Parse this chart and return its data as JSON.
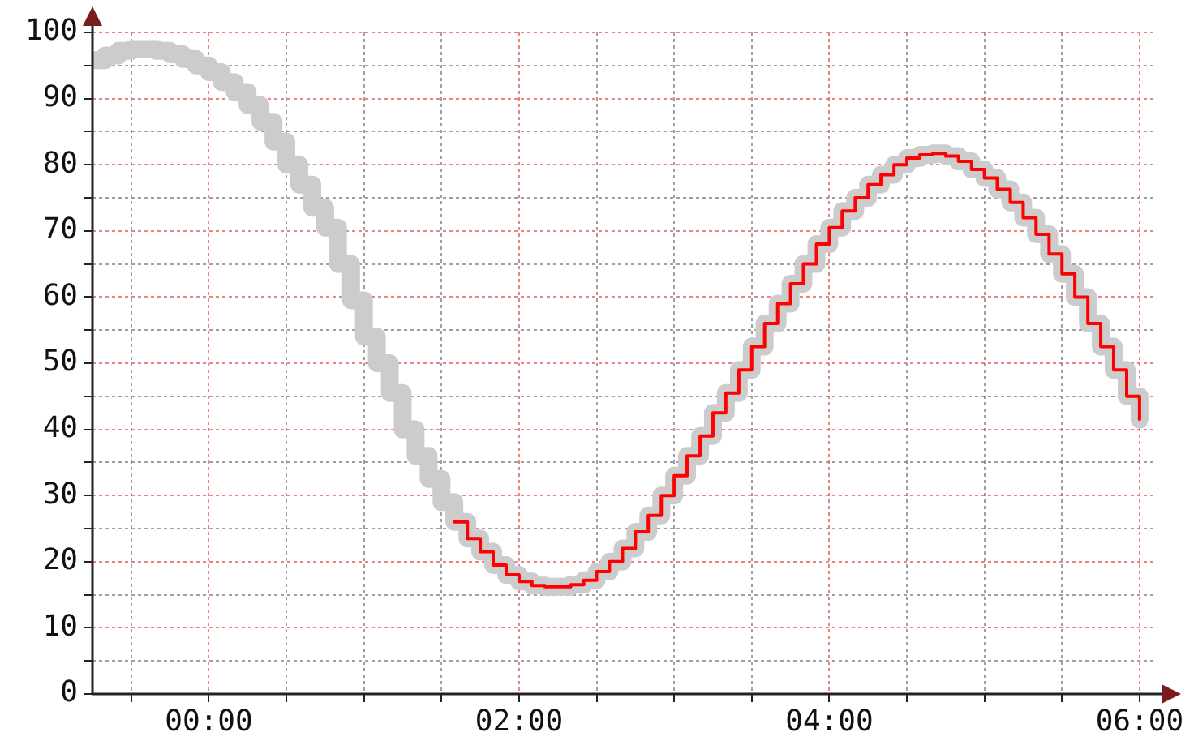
{
  "chart_data": {
    "type": "step",
    "xlim": [
      -0.75,
      6.1
    ],
    "ylim": [
      0,
      100
    ],
    "xticks": [
      {
        "value": -0.5,
        "label": null
      },
      {
        "value": 0,
        "label": "00:00"
      },
      {
        "value": 0.5,
        "label": null
      },
      {
        "value": 1,
        "label": null
      },
      {
        "value": 1.5,
        "label": null
      },
      {
        "value": 2,
        "label": "02:00"
      },
      {
        "value": 2.5,
        "label": null
      },
      {
        "value": 3,
        "label": null
      },
      {
        "value": 3.5,
        "label": null
      },
      {
        "value": 4,
        "label": "04:00"
      },
      {
        "value": 4.5,
        "label": null
      },
      {
        "value": 5,
        "label": null
      },
      {
        "value": 5.5,
        "label": null
      },
      {
        "value": 6,
        "label": "06:00"
      }
    ],
    "yticks": [
      0,
      {
        "value": 5,
        "label": null
      },
      10,
      {
        "value": 15,
        "label": null
      },
      20,
      {
        "value": 25,
        "label": null
      },
      30,
      {
        "value": 35,
        "label": null
      },
      40,
      {
        "value": 45,
        "label": null
      },
      50,
      {
        "value": 55,
        "label": null
      },
      60,
      {
        "value": 65,
        "label": null
      },
      70,
      {
        "value": 75,
        "label": null
      },
      80,
      {
        "value": 85,
        "label": null
      },
      90,
      {
        "value": 95,
        "label": null
      },
      100
    ],
    "grid": true,
    "legend": false,
    "marker": "none",
    "series": [
      {
        "color": "#cccccc",
        "x": [
          -0.75,
          -0.667,
          -0.583,
          -0.5,
          -0.417,
          -0.333,
          -0.25,
          -0.167,
          -0.083,
          0,
          0.083,
          0.167,
          0.25,
          0.333,
          0.417,
          0.5,
          0.583,
          0.667,
          0.75,
          0.833,
          0.917,
          1,
          1.083,
          1.167,
          1.25,
          1.333,
          1.417,
          1.5,
          1.583,
          1.667,
          1.75,
          1.833,
          1.917,
          2,
          2.083,
          2.167,
          2.25,
          2.333,
          2.417,
          2.5,
          2.583,
          2.667,
          2.75,
          2.833,
          2.917,
          3,
          3.083,
          3.167,
          3.25,
          3.333,
          3.417,
          3.5,
          3.583,
          3.667,
          3.75,
          3.833,
          3.917,
          4,
          4.083,
          4.167,
          4.25,
          4.333,
          4.417,
          4.5,
          4.583,
          4.667,
          4.75,
          4.833,
          4.917,
          5,
          5.083,
          5.167,
          5.25,
          5.333,
          5.417,
          5.5,
          5.583,
          5.667,
          5.75,
          5.833,
          5.917,
          6
        ],
        "values": [
          95.8,
          96.5,
          97.2,
          97.5,
          97.5,
          97.2,
          96.7,
          96,
          95,
          94,
          92.5,
          91,
          89,
          86.5,
          83.5,
          80,
          77,
          73.5,
          70.5,
          65,
          59.5,
          54,
          50,
          45.5,
          40,
          36,
          32.5,
          29,
          26,
          23.5,
          21.5,
          19.5,
          18,
          17,
          16.4,
          16.2,
          16.2,
          16.5,
          17.2,
          18.5,
          20,
          22,
          24.5,
          27,
          30,
          33,
          36,
          39,
          42.5,
          45.5,
          49,
          52.5,
          56,
          59,
          62,
          65,
          68,
          70.5,
          73,
          75,
          77,
          78.5,
          80,
          81,
          81.5,
          81.7,
          81.3,
          80.5,
          79.3,
          78,
          76.3,
          74.3,
          72,
          69.5,
          66.5,
          63.5,
          60,
          56,
          52.5,
          49,
          45,
          41.5
        ]
      },
      {
        "color": "#ff0000",
        "x": [
          1.583,
          1.667,
          1.75,
          1.833,
          1.917,
          2,
          2.083,
          2.167,
          2.25,
          2.333,
          2.417,
          2.5,
          2.583,
          2.667,
          2.75,
          2.833,
          2.917,
          3,
          3.083,
          3.167,
          3.25,
          3.333,
          3.417,
          3.5,
          3.583,
          3.667,
          3.75,
          3.833,
          3.917,
          4,
          4.083,
          4.167,
          4.25,
          4.333,
          4.417,
          4.5,
          4.583,
          4.667,
          4.75,
          4.833,
          4.917,
          5,
          5.083,
          5.167,
          5.25,
          5.333,
          5.417,
          5.5,
          5.583,
          5.667,
          5.75,
          5.833,
          5.917,
          6
        ],
        "values": [
          26,
          23.5,
          21.5,
          19.5,
          18,
          17,
          16.4,
          16.2,
          16.2,
          16.5,
          17.2,
          18.5,
          20,
          22,
          24.5,
          27,
          30,
          33,
          36,
          39,
          42.5,
          45.5,
          49,
          52.5,
          56,
          59,
          62,
          65,
          68,
          70.5,
          73,
          75,
          77,
          78.5,
          80,
          81,
          81.5,
          81.7,
          81.3,
          80.5,
          79.3,
          78,
          76.3,
          74.3,
          72,
          69.5,
          66.5,
          63.5,
          60,
          56,
          52.5,
          49,
          45,
          41.5
        ]
      }
    ]
  }
}
